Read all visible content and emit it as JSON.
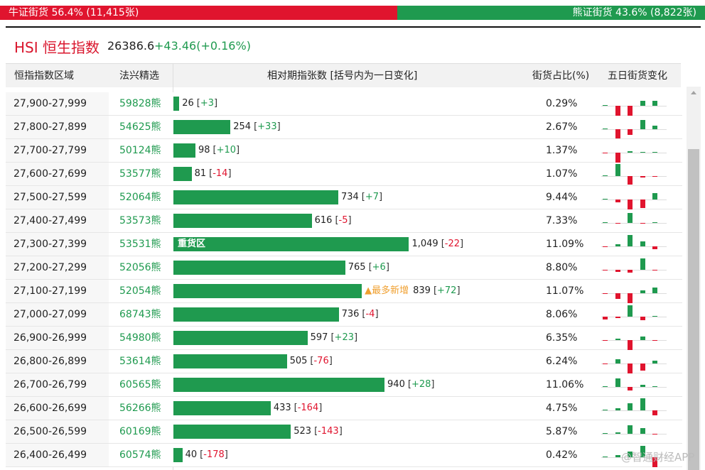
{
  "top_bar": {
    "bull_label": "牛证街货 56.4% (11,415张)",
    "bull_pct": 56.4,
    "bear_label": "熊证街货 43.6% (8,822张)",
    "bear_pct": 43.6
  },
  "index": {
    "name": "HSI 恒生指数",
    "price": "26386.6",
    "change": "+43.46(+0.16%)"
  },
  "table": {
    "columns": [
      "恒指指数区域",
      "法兴精选",
      "相对期指张数 [括号内为一日变化]",
      "街货占比(%)",
      "五日街货变化"
    ],
    "rows": [
      {
        "range": "27,900-27,999",
        "code": "59828熊",
        "value": 26,
        "value_label": "26",
        "change": "+3",
        "ratio": "0.29%",
        "five_day": [
          1,
          -14,
          -14,
          7,
          7
        ]
      },
      {
        "range": "27,800-27,899",
        "code": "54625熊",
        "value": 254,
        "value_label": "254",
        "change": "+33",
        "ratio": "2.67%",
        "five_day": [
          1,
          -13,
          -8,
          13,
          5
        ]
      },
      {
        "range": "27,700-27,799",
        "code": "50124熊",
        "value": 98,
        "value_label": "98",
        "change": "+10",
        "ratio": "1.37%",
        "five_day": [
          -1,
          -15,
          2,
          1,
          1
        ]
      },
      {
        "range": "27,600-27,699",
        "code": "53577熊",
        "value": 81,
        "value_label": "81",
        "change": "-14",
        "ratio": "1.07%",
        "five_day": [
          1,
          17,
          -12,
          -2,
          -1
        ]
      },
      {
        "range": "27,500-27,599",
        "code": "52064熊",
        "value": 734,
        "value_label": "734",
        "change": "+7",
        "ratio": "9.44%",
        "five_day": [
          1,
          -4,
          -14,
          -12,
          9
        ]
      },
      {
        "range": "27,400-27,499",
        "code": "53573熊",
        "value": 616,
        "value_label": "616",
        "change": "-5",
        "ratio": "7.33%",
        "five_day": [
          1,
          -1,
          14,
          -1,
          1
        ]
      },
      {
        "range": "27,300-27,399",
        "code": "53531熊",
        "value": 1049,
        "value_label": "1,049",
        "change": "-22",
        "ratio": "11.09%",
        "bar_tag": "重货区",
        "five_day": [
          -1,
          3,
          16,
          7,
          -4
        ]
      },
      {
        "range": "27,200-27,299",
        "code": "52056熊",
        "value": 765,
        "value_label": "765",
        "change": "+6",
        "ratio": "8.80%",
        "five_day": [
          -1,
          -3,
          -4,
          16,
          -1
        ]
      },
      {
        "range": "27,100-27,199",
        "code": "52054熊",
        "value": 839,
        "value_label": "839",
        "change": "+72",
        "ratio": "11.07%",
        "tag": "▲最多新增",
        "five_day": [
          -1,
          -8,
          -16,
          4,
          8
        ]
      },
      {
        "range": "27,000-27,099",
        "code": "68743熊",
        "value": 736,
        "value_label": "736",
        "change": "-4",
        "ratio": "8.06%",
        "five_day": [
          -4,
          -2,
          16,
          -5,
          1
        ]
      },
      {
        "range": "26,900-26,999",
        "code": "54980熊",
        "value": 597,
        "value_label": "597",
        "change": "+23",
        "ratio": "6.35%",
        "five_day": [
          -1,
          2,
          -14,
          5,
          -1
        ]
      },
      {
        "range": "26,800-26,899",
        "code": "53614熊",
        "value": 505,
        "value_label": "505",
        "change": "-76",
        "ratio": "6.24%",
        "five_day": [
          -1,
          6,
          -16,
          -10,
          4
        ]
      },
      {
        "range": "26,700-26,799",
        "code": "60565熊",
        "value": 940,
        "value_label": "940",
        "change": "+28",
        "ratio": "11.06%",
        "five_day": [
          1,
          12,
          -5,
          3,
          1
        ]
      },
      {
        "range": "26,600-26,699",
        "code": "56266熊",
        "value": 433,
        "value_label": "433",
        "change": "-164",
        "ratio": "4.75%",
        "five_day": [
          1,
          3,
          10,
          17,
          -7
        ]
      },
      {
        "range": "26,500-26,599",
        "code": "60169熊",
        "value": 523,
        "value_label": "523",
        "change": "-143",
        "ratio": "5.87%",
        "five_day": [
          1,
          2,
          12,
          8,
          -1
        ]
      },
      {
        "range": "26,400-26,499",
        "code": "60574熊",
        "value": 40,
        "value_label": "40",
        "change": "-178",
        "ratio": "0.42%",
        "five_day": [
          1,
          3,
          8,
          16,
          -14
        ]
      }
    ]
  },
  "watermark": "@智通财经APP"
}
